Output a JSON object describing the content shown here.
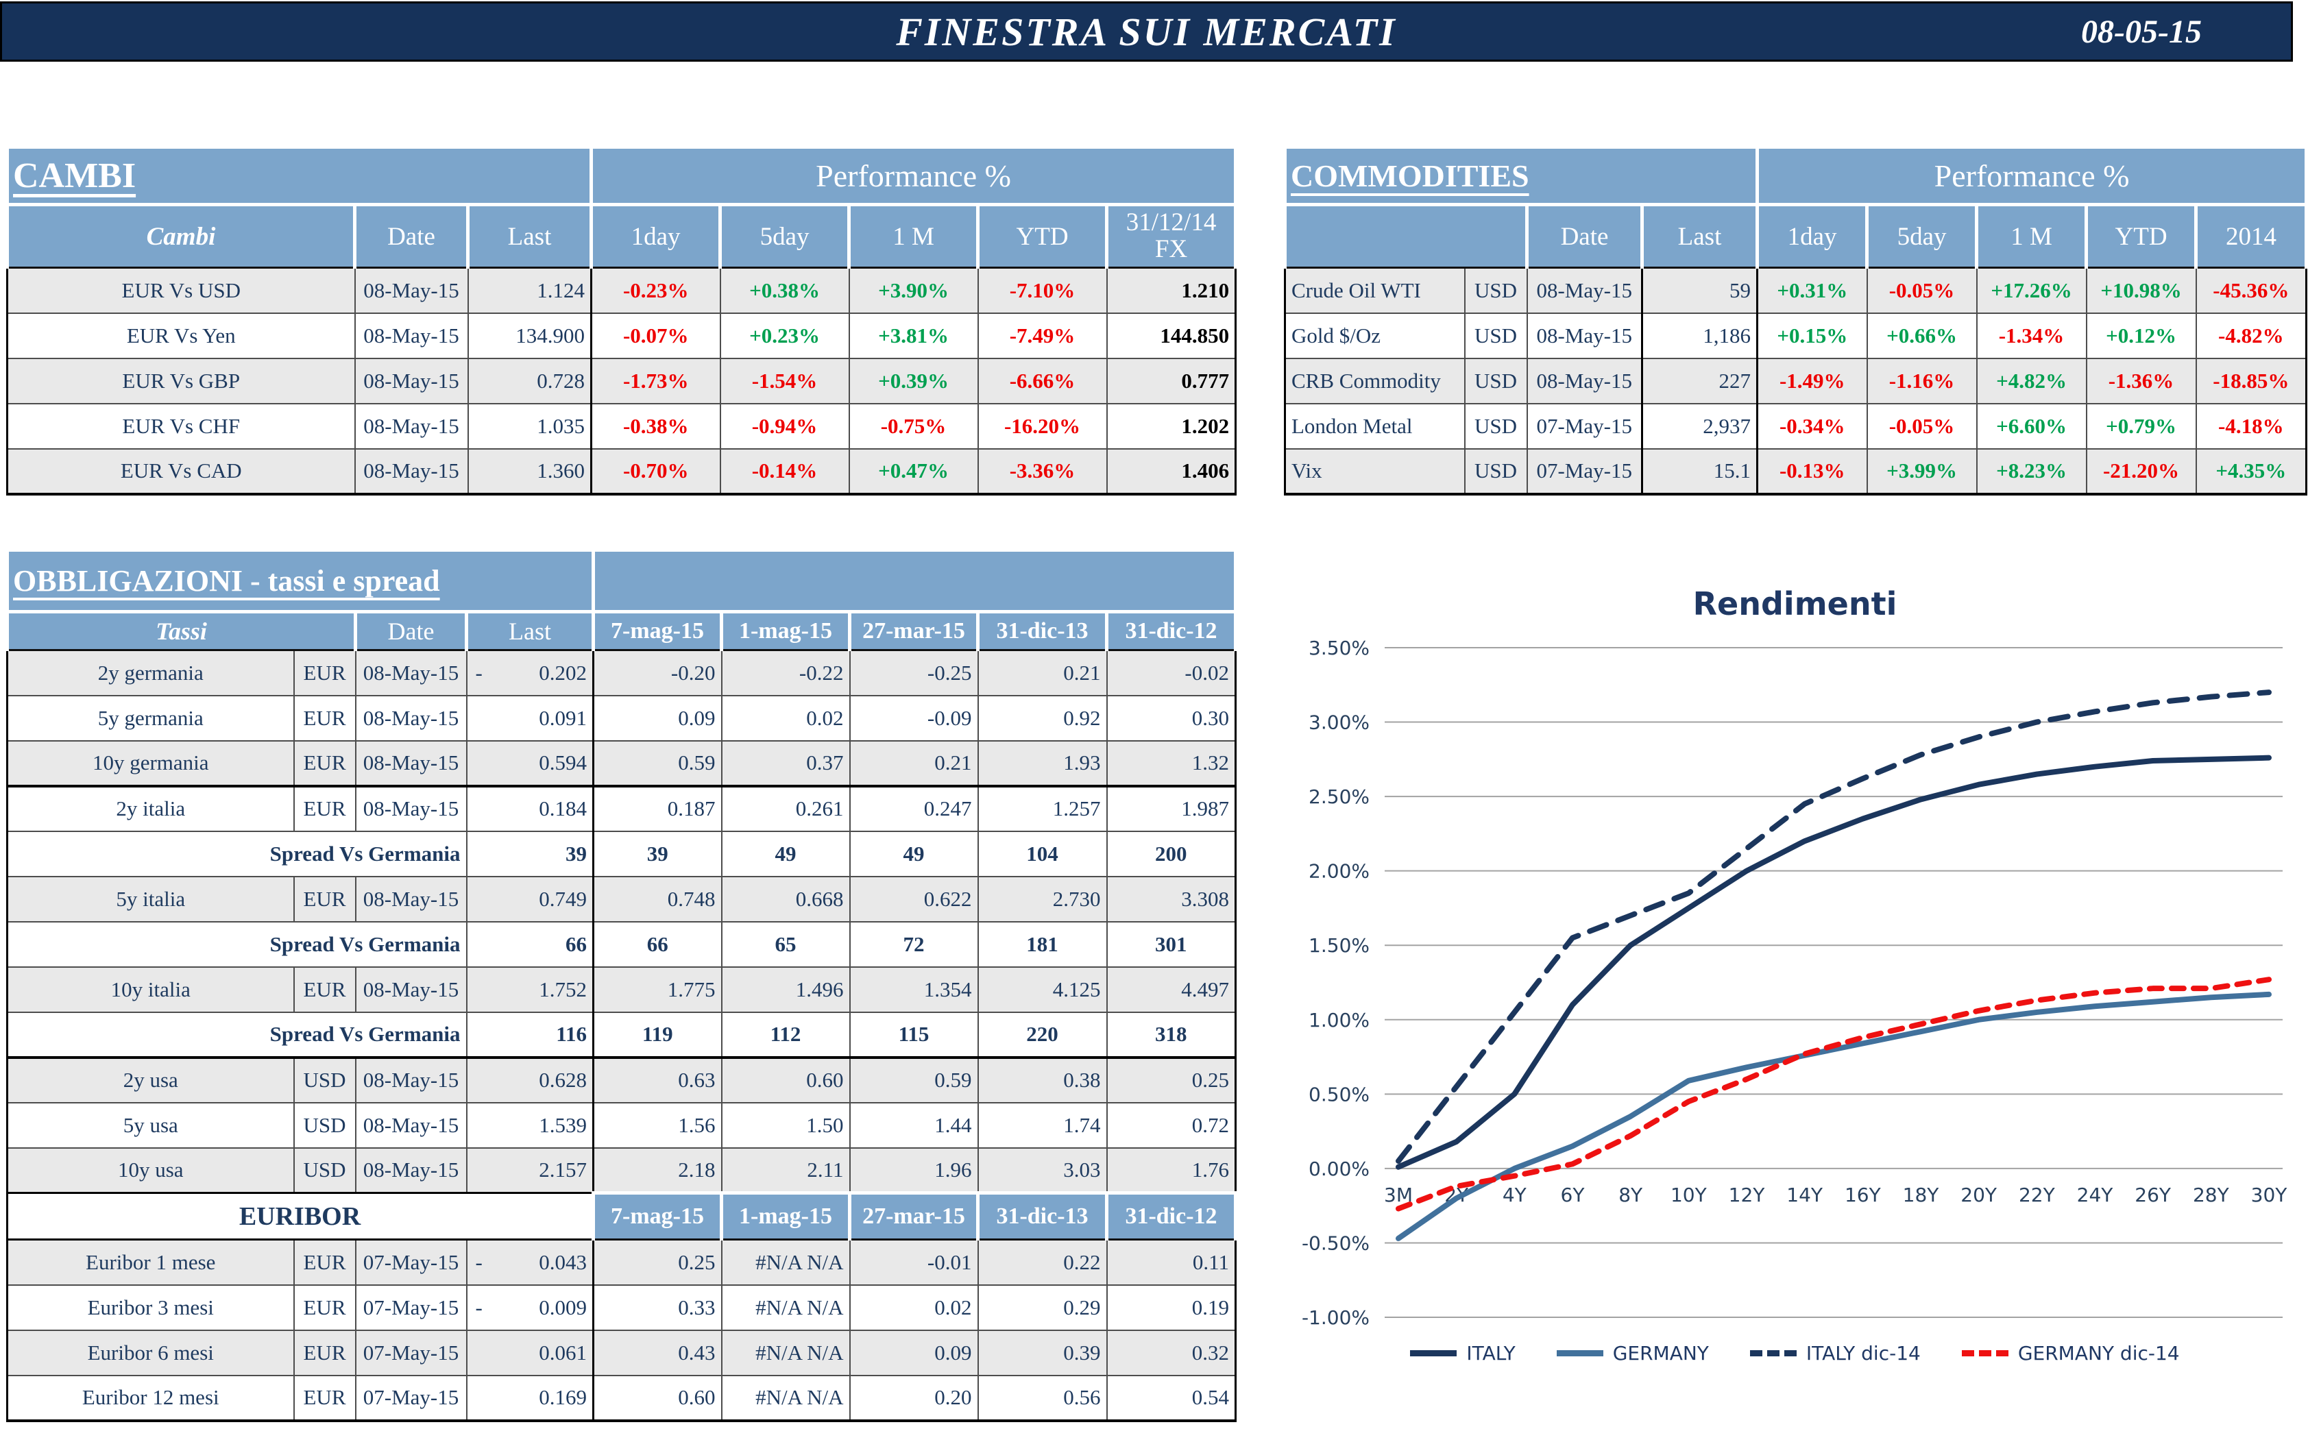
{
  "header": {
    "title": "FINESTRA SUI MERCATI",
    "date": "08-05-15"
  },
  "colors": {
    "topbar_bg": "#16325A",
    "header_blue": "#7CA5CB",
    "text_navy": "#1E3A5F",
    "positive": "#00A050",
    "negative": "#EE0000",
    "row_shade": "#E9E9E9",
    "italy_line": "#1B365D",
    "germany_line": "#41719C",
    "germany_dec_line": "#EE1111"
  },
  "cambi": {
    "title": "CAMBI",
    "performance_header": "Performance  %",
    "columns": {
      "name": "Cambi",
      "date": "Date",
      "last": "Last",
      "d1": "1day",
      "d5": "5day",
      "m1": "1 M",
      "ytd": "YTD",
      "fx_line1": "31/12/14",
      "fx_line2": "FX"
    },
    "rows": [
      {
        "name": "EUR Vs USD",
        "date": "08-May-15",
        "last": "1.124",
        "d1": "-0.23%",
        "d5": "+0.38%",
        "m1": "+3.90%",
        "ytd": "-7.10%",
        "fx": "1.210",
        "shade": true
      },
      {
        "name": "EUR Vs Yen",
        "date": "08-May-15",
        "last": "134.900",
        "d1": "-0.07%",
        "d5": "+0.23%",
        "m1": "+3.81%",
        "ytd": "-7.49%",
        "fx": "144.850",
        "shade": false
      },
      {
        "name": "EUR Vs GBP",
        "date": "08-May-15",
        "last": "0.728",
        "d1": "-1.73%",
        "d5": "-1.54%",
        "m1": "+0.39%",
        "ytd": "-6.66%",
        "fx": "0.777",
        "shade": true
      },
      {
        "name": "EUR Vs CHF",
        "date": "08-May-15",
        "last": "1.035",
        "d1": "-0.38%",
        "d5": "-0.94%",
        "m1": "-0.75%",
        "ytd": "-16.20%",
        "fx": "1.202",
        "shade": false
      },
      {
        "name": "EUR Vs CAD",
        "date": "08-May-15",
        "last": "1.360",
        "d1": "-0.70%",
        "d5": "-0.14%",
        "m1": "+0.47%",
        "ytd": "-3.36%",
        "fx": "1.406",
        "shade": true
      }
    ]
  },
  "commodities": {
    "title": "COMMODITIES",
    "performance_header": "Performance  %",
    "columns": {
      "date": "Date",
      "last": "Last",
      "d1": "1day",
      "d5": "5day",
      "m1": "1 M",
      "ytd": "YTD",
      "y2014": "2014"
    },
    "rows": [
      {
        "name": "Crude Oil WTI",
        "ccy": "USD",
        "date": "08-May-15",
        "last": "59",
        "d1": "+0.31%",
        "d5": "-0.05%",
        "m1": "+17.26%",
        "ytd": "+10.98%",
        "y2014": "-45.36%",
        "shade": true
      },
      {
        "name": "Gold $/Oz",
        "ccy": "USD",
        "date": "08-May-15",
        "last": "1,186",
        "d1": "+0.15%",
        "d5": "+0.66%",
        "m1": "-1.34%",
        "ytd": "+0.12%",
        "y2014": "-4.82%",
        "shade": false
      },
      {
        "name": "CRB Commodity",
        "ccy": "USD",
        "date": "08-May-15",
        "last": "227",
        "d1": "-1.49%",
        "d5": "-1.16%",
        "m1": "+4.82%",
        "ytd": "-1.36%",
        "y2014": "-18.85%",
        "shade": true
      },
      {
        "name": "London Metal",
        "ccy": "USD",
        "date": "07-May-15",
        "last": "2,937",
        "d1": "-0.34%",
        "d5": "-0.05%",
        "m1": "+6.60%",
        "ytd": "+0.79%",
        "y2014": "-4.18%",
        "shade": false
      },
      {
        "name": "Vix",
        "ccy": "USD",
        "date": "07-May-15",
        "last": "15.1",
        "d1": "-0.13%",
        "d5": "+3.99%",
        "m1": "+8.23%",
        "ytd": "-21.20%",
        "y2014": "+4.35%",
        "shade": true
      }
    ]
  },
  "obbligazioni": {
    "title": "OBBLIGAZIONI - tassi e spread",
    "columns": {
      "name": "Tassi",
      "date": "Date",
      "last": "Last"
    },
    "history_columns": [
      "7-mag-15",
      "1-mag-15",
      "27-mar-15",
      "31-dic-13",
      "31-dic-12"
    ],
    "rows": [
      {
        "type": "rate",
        "name": "2y germania",
        "ccy": "EUR",
        "date": "08-May-15",
        "last": "0.202",
        "last_negative": true,
        "history": [
          "-0.20",
          "-0.22",
          "-0.25",
          "0.21",
          "-0.02"
        ],
        "shade": true
      },
      {
        "type": "rate",
        "name": "5y germania",
        "ccy": "EUR",
        "date": "08-May-15",
        "last": "0.091",
        "last_negative": false,
        "history": [
          "0.09",
          "0.02",
          "-0.09",
          "0.92",
          "0.30"
        ],
        "shade": false
      },
      {
        "type": "rate",
        "name": "10y germania",
        "ccy": "EUR",
        "date": "08-May-15",
        "last": "0.594",
        "last_negative": false,
        "history": [
          "0.59",
          "0.37",
          "0.21",
          "1.93",
          "1.32"
        ],
        "shade": true
      },
      {
        "type": "rate",
        "name": "2y italia",
        "ccy": "EUR",
        "date": "08-May-15",
        "last": "0.184",
        "last_negative": false,
        "history": [
          "0.187",
          "0.261",
          "0.247",
          "1.257",
          "1.987"
        ],
        "shade": false,
        "thick_top": true
      },
      {
        "type": "spread",
        "label": "Spread Vs Germania",
        "last": "39",
        "history": [
          "39",
          "49",
          "49",
          "104",
          "200"
        ],
        "shade": false
      },
      {
        "type": "rate",
        "name": "5y italia",
        "ccy": "EUR",
        "date": "08-May-15",
        "last": "0.749",
        "last_negative": false,
        "history": [
          "0.748",
          "0.668",
          "0.622",
          "2.730",
          "3.308"
        ],
        "shade": true
      },
      {
        "type": "spread",
        "label": "Spread Vs Germania",
        "last": "66",
        "history": [
          "66",
          "65",
          "72",
          "181",
          "301"
        ],
        "shade": false
      },
      {
        "type": "rate",
        "name": "10y italia",
        "ccy": "EUR",
        "date": "08-May-15",
        "last": "1.752",
        "last_negative": false,
        "history": [
          "1.775",
          "1.496",
          "1.354",
          "4.125",
          "4.497"
        ],
        "shade": true
      },
      {
        "type": "spread",
        "label": "Spread Vs Germania",
        "last": "116",
        "history": [
          "119",
          "112",
          "115",
          "220",
          "318"
        ],
        "shade": false
      },
      {
        "type": "rate",
        "name": "2y usa",
        "ccy": "USD",
        "date": "08-May-15",
        "last": "0.628",
        "last_negative": false,
        "history": [
          "0.63",
          "0.60",
          "0.59",
          "0.38",
          "0.25"
        ],
        "shade": true,
        "thick_top": true
      },
      {
        "type": "rate",
        "name": "5y usa",
        "ccy": "USD",
        "date": "08-May-15",
        "last": "1.539",
        "last_negative": false,
        "history": [
          "1.56",
          "1.50",
          "1.44",
          "1.74",
          "0.72"
        ],
        "shade": false
      },
      {
        "type": "rate",
        "name": "10y usa",
        "ccy": "USD",
        "date": "08-May-15",
        "last": "2.157",
        "last_negative": false,
        "history": [
          "2.18",
          "2.11",
          "1.96",
          "3.03",
          "1.76"
        ],
        "shade": true
      }
    ],
    "euribor": {
      "title": "EURIBOR",
      "history_columns": [
        "7-mag-15",
        "1-mag-15",
        "27-mar-15",
        "31-dic-13",
        "31-dic-12"
      ],
      "rows": [
        {
          "name": "Euribor 1 mese",
          "ccy": "EUR",
          "date": "07-May-15",
          "last": "0.043",
          "last_negative": true,
          "history": [
            "0.25",
            "#N/A N/A",
            "-0.01",
            "0.22",
            "0.11"
          ],
          "shade": true
        },
        {
          "name": "Euribor 3 mesi",
          "ccy": "EUR",
          "date": "07-May-15",
          "last": "0.009",
          "last_negative": true,
          "history": [
            "0.33",
            "#N/A N/A",
            "0.02",
            "0.29",
            "0.19"
          ],
          "shade": false
        },
        {
          "name": "Euribor 6 mesi",
          "ccy": "EUR",
          "date": "07-May-15",
          "last": "0.061",
          "last_negative": false,
          "history": [
            "0.43",
            "#N/A N/A",
            "0.09",
            "0.39",
            "0.32"
          ],
          "shade": true
        },
        {
          "name": "Euribor 12 mesi",
          "ccy": "EUR",
          "date": "07-May-15",
          "last": "0.169",
          "last_negative": false,
          "history": [
            "0.60",
            "#N/A N/A",
            "0.20",
            "0.56",
            "0.54"
          ],
          "shade": false
        }
      ]
    }
  },
  "chart_data": {
    "type": "line",
    "title": "Rendimenti",
    "categories": [
      "3M",
      "2Y",
      "4Y",
      "6Y",
      "8Y",
      "10Y",
      "12Y",
      "14Y",
      "16Y",
      "18Y",
      "20Y",
      "22Y",
      "24Y",
      "26Y",
      "28Y",
      "30Y"
    ],
    "unit": "percent",
    "ylim": [
      -1.0,
      3.5
    ],
    "y_tick_step": 0.5,
    "y_ticks": [
      "3.50%",
      "3.00%",
      "2.50%",
      "2.00%",
      "1.50%",
      "1.00%",
      "0.50%",
      "0.00%",
      "-0.50%",
      "-1.00%"
    ],
    "grid": true,
    "legend_position": "bottom",
    "series": [
      {
        "name": "ITALY",
        "color": "#1B365D",
        "line_style": "solid",
        "values": [
          0.01,
          0.18,
          0.5,
          1.1,
          1.5,
          1.75,
          2.0,
          2.2,
          2.35,
          2.48,
          2.58,
          2.65,
          2.7,
          2.74,
          2.75,
          2.76
        ]
      },
      {
        "name": "GERMANY",
        "color": "#41719C",
        "line_style": "solid",
        "values": [
          -0.47,
          -0.2,
          0.0,
          0.15,
          0.35,
          0.59,
          0.68,
          0.76,
          0.84,
          0.92,
          1.0,
          1.05,
          1.09,
          1.12,
          1.15,
          1.17
        ]
      },
      {
        "name": "ITALY dic-14",
        "color": "#1B365D",
        "line_style": "dashed",
        "values": [
          0.05,
          0.55,
          1.05,
          1.55,
          1.7,
          1.85,
          2.15,
          2.45,
          2.62,
          2.78,
          2.9,
          3.0,
          3.07,
          3.13,
          3.17,
          3.2
        ]
      },
      {
        "name": "GERMANY dic-14",
        "color": "#EE1111",
        "line_style": "dashed",
        "values": [
          -0.27,
          -0.12,
          -0.05,
          0.03,
          0.22,
          0.45,
          0.6,
          0.77,
          0.88,
          0.97,
          1.06,
          1.13,
          1.18,
          1.21,
          1.21,
          1.27
        ]
      }
    ]
  }
}
